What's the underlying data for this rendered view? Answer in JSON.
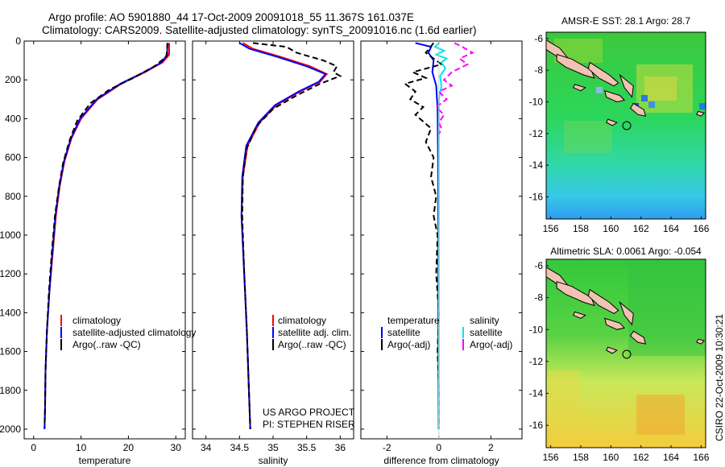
{
  "figure": {
    "title_line1": "Argo profile: AO 5901880_44 17-Oct-2009 20091018_55 11.367S 161.037E",
    "title_line2": "Climatology: CARS2009. Satellite-adjusted climatology: synTS_20091016.nc (1.6d earlier)",
    "side_label": "CSIRO 22-Oct-2009 10:30:21"
  },
  "chart_data": [
    {
      "type": "line",
      "panel": "temperature",
      "xlabel": "temperature",
      "ylabel": "",
      "xlim": [
        -2,
        32
      ],
      "ylim": [
        2050,
        0
      ],
      "xticks": [
        0,
        10,
        20,
        30
      ],
      "yticks": [
        0,
        200,
        400,
        600,
        800,
        1000,
        1200,
        1400,
        1600,
        1800,
        2000
      ],
      "legend": [
        "climatology",
        "satellite-adjusted climatology",
        "Argo(..raw -QC)"
      ],
      "legend_position": "lower-middle",
      "series": [
        {
          "name": "climatology",
          "color": "#ff0000",
          "dash": "solid",
          "points": [
            [
              28.6,
              10
            ],
            [
              28.6,
              70
            ],
            [
              27.2,
              110
            ],
            [
              23.5,
              160
            ],
            [
              18.5,
              220
            ],
            [
              13.5,
              300
            ],
            [
              10,
              400
            ],
            [
              8,
              500
            ],
            [
              6.5,
              620
            ],
            [
              5.5,
              750
            ],
            [
              4.7,
              900
            ],
            [
              4,
              1100
            ],
            [
              3.3,
              1300
            ],
            [
              2.8,
              1500
            ],
            [
              2.5,
              1700
            ],
            [
              2.4,
              1900
            ],
            [
              2.3,
              2000
            ]
          ]
        },
        {
          "name": "satellite-adjusted climatology",
          "color": "#0000ff",
          "dash": "solid",
          "points": [
            [
              28.2,
              10
            ],
            [
              28.2,
              70
            ],
            [
              27,
              110
            ],
            [
              23.3,
              160
            ],
            [
              18.3,
              220
            ],
            [
              13.3,
              300
            ],
            [
              9.8,
              400
            ],
            [
              7.9,
              500
            ],
            [
              6.4,
              620
            ],
            [
              5.4,
              750
            ],
            [
              4.6,
              900
            ],
            [
              3.9,
              1100
            ],
            [
              3.3,
              1300
            ],
            [
              2.8,
              1500
            ],
            [
              2.5,
              1700
            ],
            [
              2.4,
              1900
            ],
            [
              2.3,
              2000
            ]
          ]
        },
        {
          "name": "Argo(..raw -QC)",
          "color": "#000000",
          "dash": "dashed",
          "points": [
            [
              28.3,
              10
            ],
            [
              28,
              80
            ],
            [
              25.5,
              130
            ],
            [
              21,
              190
            ],
            [
              16,
              250
            ],
            [
              12,
              320
            ],
            [
              9.2,
              410
            ],
            [
              7.6,
              510
            ],
            [
              6.2,
              630
            ],
            [
              5.3,
              760
            ],
            [
              4.5,
              900
            ],
            [
              3.8,
              1100
            ],
            [
              3.2,
              1300
            ],
            [
              2.8,
              1500
            ],
            [
              2.5,
              1700
            ],
            [
              2.4,
              1900
            ],
            [
              2.3,
              1990
            ]
          ]
        }
      ]
    },
    {
      "type": "line",
      "panel": "salinity",
      "xlabel": "salinity",
      "xlim": [
        33.8,
        36.2
      ],
      "ylim": [
        2050,
        0
      ],
      "xticks": [
        34,
        34.5,
        35,
        35.5,
        36
      ],
      "legend": [
        "climatology",
        "satellite adj. clim.",
        "Argo(..raw -QC)"
      ],
      "legend_position": "lower-right",
      "annotations": [
        "US ARGO PROJECT",
        "PI: STEPHEN RISER"
      ],
      "series": [
        {
          "name": "climatology",
          "color": "#ff0000",
          "dash": "solid",
          "points": [
            [
              34.55,
              10
            ],
            [
              34.7,
              40
            ],
            [
              35.1,
              80
            ],
            [
              35.55,
              130
            ],
            [
              35.8,
              170
            ],
            [
              35.7,
              210
            ],
            [
              35.4,
              260
            ],
            [
              35.05,
              330
            ],
            [
              34.8,
              420
            ],
            [
              34.62,
              540
            ],
            [
              34.55,
              700
            ],
            [
              34.53,
              900
            ],
            [
              34.57,
              1200
            ],
            [
              34.61,
              1500
            ],
            [
              34.64,
              1800
            ],
            [
              34.66,
              2000
            ]
          ]
        },
        {
          "name": "satellite adj. clim.",
          "color": "#0000ff",
          "dash": "solid",
          "points": [
            [
              34.5,
              10
            ],
            [
              34.65,
              40
            ],
            [
              35.05,
              80
            ],
            [
              35.5,
              130
            ],
            [
              35.78,
              170
            ],
            [
              35.68,
              210
            ],
            [
              35.38,
              260
            ],
            [
              35.03,
              330
            ],
            [
              34.78,
              420
            ],
            [
              34.6,
              540
            ],
            [
              34.54,
              700
            ],
            [
              34.53,
              900
            ],
            [
              34.57,
              1200
            ],
            [
              34.61,
              1500
            ],
            [
              34.64,
              1800
            ],
            [
              34.66,
              2000
            ]
          ]
        },
        {
          "name": "Argo(..raw -QC)",
          "color": "#000000",
          "dash": "dashed",
          "points": [
            [
              34.7,
              10
            ],
            [
              35.2,
              30
            ],
            [
              35.35,
              60
            ],
            [
              35.75,
              100
            ],
            [
              35.95,
              130
            ],
            [
              35.9,
              160
            ],
            [
              36,
              180
            ],
            [
              35.7,
              220
            ],
            [
              35.35,
              280
            ],
            [
              35,
              350
            ],
            [
              34.75,
              440
            ],
            [
              34.6,
              560
            ],
            [
              34.55,
              700
            ],
            [
              34.54,
              900
            ],
            [
              34.57,
              1200
            ],
            [
              34.61,
              1500
            ],
            [
              34.64,
              1800
            ],
            [
              34.66,
              2000
            ]
          ]
        }
      ]
    },
    {
      "type": "line",
      "panel": "difference",
      "xlabel": "difference from climatology",
      "xlim": [
        -3,
        3.2
      ],
      "ylim": [
        2050,
        0
      ],
      "xticks": [
        -2,
        0,
        2
      ],
      "legend": [
        "temperature",
        "satellite",
        "Argo(-adj)",
        "salinity",
        "satellite",
        "Argo(-adj)"
      ],
      "legend_position": "lower-middle",
      "series": [
        {
          "name": "temperature satellite",
          "color": "#0000ff",
          "dash": "solid",
          "points": [
            [
              -0.9,
              10
            ],
            [
              -0.3,
              30
            ],
            [
              -0.4,
              60
            ],
            [
              -0.2,
              100
            ],
            [
              -0.25,
              160
            ],
            [
              -0.1,
              230
            ],
            [
              -0.05,
              350
            ],
            [
              -0.03,
              600
            ],
            [
              -0.02,
              1000
            ],
            [
              -0.02,
              1500
            ],
            [
              -0.01,
              2000
            ]
          ]
        },
        {
          "name": "temperature Argo(-adj)",
          "color": "#000000",
          "dash": "dashed",
          "points": [
            [
              -0.2,
              10
            ],
            [
              -0.5,
              60
            ],
            [
              0.1,
              120
            ],
            [
              -1,
              160
            ],
            [
              -0.5,
              190
            ],
            [
              -1.3,
              220
            ],
            [
              -0.9,
              260
            ],
            [
              -1.1,
              300
            ],
            [
              -0.6,
              340
            ],
            [
              -0.9,
              380
            ],
            [
              -0.3,
              450
            ],
            [
              -0.5,
              520
            ],
            [
              -0.2,
              600
            ],
            [
              -0.3,
              700
            ],
            [
              -0.1,
              800
            ],
            [
              -0.2,
              900
            ],
            [
              -0.05,
              1000
            ],
            [
              -0.1,
              1200
            ],
            [
              0,
              1400
            ],
            [
              -0.05,
              1600
            ],
            [
              0,
              1800
            ],
            [
              0,
              2000
            ]
          ]
        },
        {
          "name": "salinity satellite",
          "color": "#00e5ee",
          "dash": "solid",
          "points": [
            [
              0,
              10
            ],
            [
              -0.15,
              30
            ],
            [
              0.2,
              50
            ],
            [
              -0.1,
              70
            ],
            [
              0.3,
              90
            ],
            [
              0.1,
              110
            ],
            [
              0.25,
              140
            ],
            [
              0.05,
              180
            ],
            [
              0.1,
              230
            ],
            [
              0,
              300
            ],
            [
              0,
              500
            ],
            [
              0,
              1000
            ],
            [
              0,
              1500
            ],
            [
              0,
              2000
            ]
          ]
        },
        {
          "name": "salinity Argo(-adj)",
          "color": "#ff00ff",
          "dash": "dashed",
          "points": [
            [
              0.6,
              10
            ],
            [
              0.9,
              30
            ],
            [
              1.3,
              60
            ],
            [
              0.8,
              90
            ],
            [
              1.1,
              120
            ],
            [
              0.5,
              160
            ],
            [
              0.2,
              200
            ],
            [
              0.5,
              230
            ],
            [
              0,
              260
            ],
            [
              0.3,
              300
            ],
            [
              -0.1,
              340
            ],
            [
              0.2,
              380
            ],
            [
              0,
              420
            ],
            [
              0.1,
              450
            ],
            [
              0,
              480
            ]
          ]
        }
      ]
    },
    {
      "type": "heatmap",
      "panel": "sst_map",
      "title": "AMSR-E SST: 28.1  Argo: 28.7",
      "xlim": [
        155.7,
        166.3
      ],
      "ylim": [
        -17.4,
        -5.6
      ],
      "xticks": [
        156,
        158,
        160,
        162,
        164,
        166
      ],
      "yticks": [
        -6,
        -8,
        -10,
        -12,
        -14,
        -16
      ],
      "marker": {
        "lon": 161.037,
        "lat": -11.367
      }
    },
    {
      "type": "heatmap",
      "panel": "sla_map",
      "title": "Altimetric SLA: 0.0061  Argo: -0.054",
      "xlim": [
        155.7,
        166.3
      ],
      "ylim": [
        -17.4,
        -5.6
      ],
      "xticks": [
        156,
        158,
        160,
        162,
        164,
        166
      ],
      "yticks": [
        -6,
        -8,
        -10,
        -12,
        -14,
        -16
      ],
      "marker": {
        "lon": 161.037,
        "lat": -11.367
      }
    }
  ]
}
